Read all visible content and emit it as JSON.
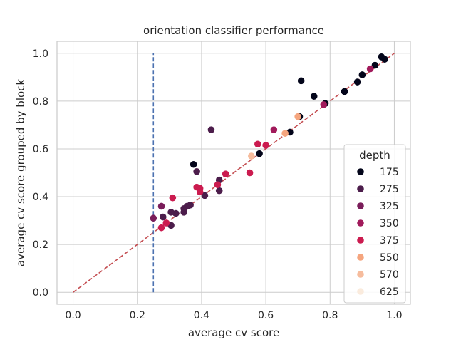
{
  "chart_data": {
    "type": "scatter",
    "title": "orientation classifier performance",
    "xlabel": "average cv score",
    "ylabel": "average cv score grouped by block",
    "xlim": [
      -0.05,
      1.05
    ],
    "ylim": [
      -0.05,
      1.05
    ],
    "xticks": [
      0.0,
      0.2,
      0.4,
      0.6,
      0.8,
      1.0
    ],
    "yticks": [
      0.0,
      0.2,
      0.4,
      0.6,
      0.8,
      1.0
    ],
    "xtick_labels": [
      "0.0",
      "0.2",
      "0.4",
      "0.6",
      "0.8",
      "1.0"
    ],
    "ytick_labels": [
      "0.0",
      "0.2",
      "0.4",
      "0.6",
      "0.8",
      "1.0"
    ],
    "grid": true,
    "legend": {
      "title": "depth",
      "placement": "lower-right"
    },
    "reference_lines": [
      {
        "kind": "diagonal",
        "from": [
          0,
          0
        ],
        "to": [
          1,
          1
        ],
        "style": "dashed",
        "color": "#c44e52"
      },
      {
        "kind": "vertical",
        "x": 0.25,
        "y_range": [
          0,
          1
        ],
        "style": "dashed",
        "color": "#4c72b0"
      }
    ],
    "series": [
      {
        "name": "175",
        "color": "#03051a",
        "points": [
          [
            0.96,
            0.985
          ],
          [
            0.97,
            0.975
          ],
          [
            0.94,
            0.95
          ],
          [
            0.9,
            0.91
          ],
          [
            0.885,
            0.88
          ],
          [
            0.845,
            0.84
          ],
          [
            0.785,
            0.79
          ],
          [
            0.75,
            0.82
          ],
          [
            0.71,
            0.885
          ],
          [
            0.705,
            0.735
          ],
          [
            0.675,
            0.67
          ],
          [
            0.58,
            0.58
          ],
          [
            0.375,
            0.535
          ]
        ]
      },
      {
        "name": "275",
        "color": "#4c1d4b",
        "points": [
          [
            0.43,
            0.68
          ],
          [
            0.385,
            0.505
          ],
          [
            0.455,
            0.47
          ],
          [
            0.455,
            0.425
          ],
          [
            0.41,
            0.405
          ],
          [
            0.365,
            0.365
          ],
          [
            0.355,
            0.36
          ],
          [
            0.345,
            0.35
          ],
          [
            0.345,
            0.335
          ],
          [
            0.32,
            0.33
          ],
          [
            0.305,
            0.335
          ],
          [
            0.28,
            0.315
          ],
          [
            0.305,
            0.28
          ]
        ]
      },
      {
        "name": "325",
        "color": "#7a1d5a",
        "points": [
          [
            0.275,
            0.36
          ],
          [
            0.25,
            0.31
          ]
        ]
      },
      {
        "name": "350",
        "color": "#a11a5b",
        "points": [
          [
            0.925,
            0.935
          ],
          [
            0.78,
            0.785
          ],
          [
            0.625,
            0.68
          ]
        ]
      },
      {
        "name": "375",
        "color": "#cb1b4f",
        "points": [
          [
            0.575,
            0.62
          ],
          [
            0.6,
            0.615
          ],
          [
            0.55,
            0.5
          ],
          [
            0.475,
            0.495
          ],
          [
            0.45,
            0.45
          ],
          [
            0.385,
            0.44
          ],
          [
            0.395,
            0.435
          ],
          [
            0.395,
            0.42
          ],
          [
            0.31,
            0.395
          ],
          [
            0.29,
            0.29
          ],
          [
            0.275,
            0.27
          ]
        ]
      },
      {
        "name": "550",
        "color": "#f5a57e",
        "points": [
          [
            0.7,
            0.735
          ],
          [
            0.66,
            0.665
          ]
        ]
      },
      {
        "name": "570",
        "color": "#f6bc9d",
        "points": [
          [
            0.555,
            0.57
          ]
        ]
      },
      {
        "name": "625",
        "color": "#faebdd",
        "points": []
      }
    ]
  }
}
